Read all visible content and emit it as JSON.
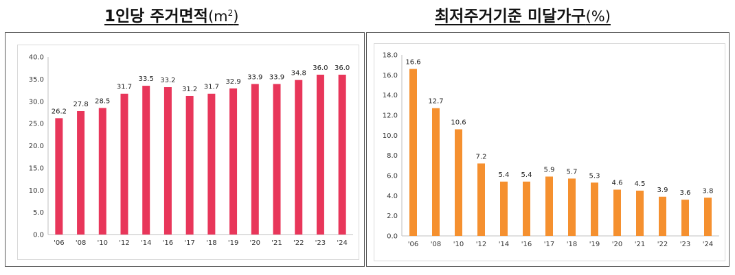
{
  "titles": {
    "left_main": "1인당 주거면적",
    "left_unit_open": "(m",
    "left_unit_sup": "2",
    "left_unit_close": ")",
    "right_main": "최저주거기준 미달가구",
    "right_unit": "(%)"
  },
  "colors": {
    "left_bar": "#e8365a",
    "right_bar": "#f5902f"
  },
  "chart_data": [
    {
      "type": "bar",
      "title": "1인당 주거면적(m2)",
      "categories": [
        "'06",
        "'08",
        "'10",
        "'12",
        "'14",
        "'16",
        "'17",
        "'18",
        "'19",
        "'20",
        "'21",
        "'22",
        "'23",
        "'24"
      ],
      "values": [
        26.2,
        27.8,
        28.5,
        31.7,
        33.5,
        33.2,
        31.2,
        31.7,
        32.9,
        33.9,
        33.9,
        34.8,
        36.0,
        36.0
      ],
      "value_labels": [
        "26.2",
        "27.8",
        "28.5",
        "31.7",
        "33.5",
        "33.2",
        "31.2",
        "31.7",
        "32.9",
        "33.9",
        "33.9",
        "34.8",
        "36.0",
        "36.0"
      ],
      "ylim": [
        0,
        40
      ],
      "yticks": [
        "0.0",
        "5.0",
        "10.0",
        "15.0",
        "20.0",
        "25.0",
        "30.0",
        "35.0",
        "40.0"
      ],
      "grid": false
    },
    {
      "type": "bar",
      "title": "최저주거기준 미달가구(%)",
      "categories": [
        "'06",
        "'08",
        "'10",
        "'12",
        "'14",
        "'16",
        "'17",
        "'18",
        "'19",
        "'20",
        "'21",
        "'22",
        "'23",
        "'24"
      ],
      "values": [
        16.6,
        12.7,
        10.6,
        7.2,
        5.4,
        5.4,
        5.9,
        5.7,
        5.3,
        4.6,
        4.5,
        3.9,
        3.6,
        3.8
      ],
      "value_labels": [
        "16.6",
        "12.7",
        "10.6",
        "7.2",
        "5.4",
        "5.4",
        "5.9",
        "5.7",
        "5.3",
        "4.6",
        "4.5",
        "3.9",
        "3.6",
        "3.8"
      ],
      "ylim": [
        0,
        18
      ],
      "yticks": [
        "0.0",
        "2.0",
        "4.0",
        "6.0",
        "8.0",
        "10.0",
        "12.0",
        "14.0",
        "16.0",
        "18.0"
      ],
      "grid": false
    }
  ]
}
